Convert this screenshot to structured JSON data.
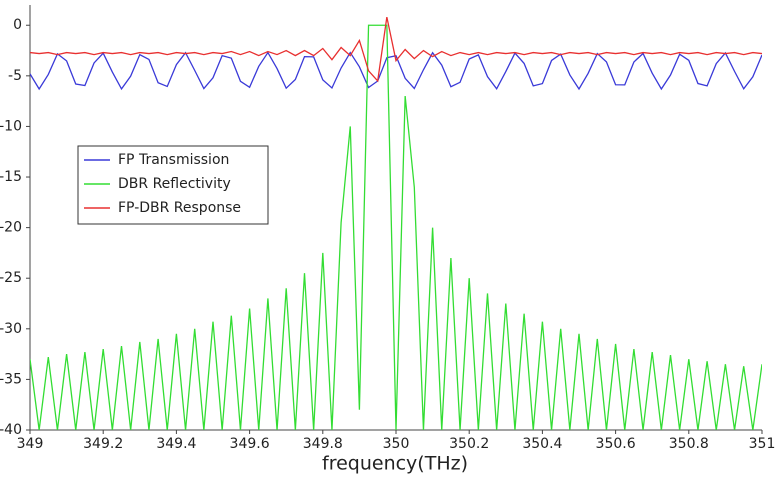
{
  "chart_data": {
    "type": "line",
    "x_label": "frequency(THz)",
    "xlim": [
      349,
      351
    ],
    "xticks": [
      349,
      349.2,
      349.4,
      349.6,
      349.8,
      350,
      350.2,
      350.4,
      350.6,
      350.8,
      351
    ],
    "ylim": [
      -40,
      2
    ],
    "yticks": [
      -40,
      -35,
      -30,
      -25,
      -20,
      -15,
      -10,
      -5,
      0
    ],
    "legend": "upper-left",
    "x": [
      349,
      349.025,
      349.05,
      349.075,
      349.1,
      349.125,
      349.15,
      349.175,
      349.2,
      349.225,
      349.25,
      349.275,
      349.3,
      349.325,
      349.35,
      349.375,
      349.4,
      349.425,
      349.45,
      349.475,
      349.5,
      349.525,
      349.55,
      349.575,
      349.6,
      349.625,
      349.65,
      349.675,
      349.7,
      349.725,
      349.75,
      349.775,
      349.8,
      349.825,
      349.85,
      349.875,
      349.9,
      349.925,
      349.95,
      349.975,
      350,
      350.025,
      350.05,
      350.075,
      350.1,
      350.125,
      350.15,
      350.175,
      350.2,
      350.225,
      350.25,
      350.275,
      350.3,
      350.325,
      350.35,
      350.375,
      350.4,
      350.425,
      350.45,
      350.475,
      350.5,
      350.525,
      350.55,
      350.575,
      350.6,
      350.625,
      350.65,
      350.675,
      350.7,
      350.725,
      350.75,
      350.775,
      350.8,
      350.825,
      350.85,
      350.875,
      350.9,
      350.925,
      350.95,
      350.975,
      351
    ],
    "series": [
      {
        "name": "FP Transmission",
        "color": "#3a3ad8",
        "values": [
          -4.8,
          -6.3,
          -4.86,
          -2.83,
          -3.52,
          -5.81,
          -5.96,
          -3.73,
          -2.76,
          -4.63,
          -6.29,
          -5.03,
          -2.91,
          -3.38,
          -5.68,
          -6.05,
          -3.89,
          -2.72,
          -4.46,
          -6.26,
          -5.19,
          -3.0,
          -3.25,
          -5.54,
          -6.13,
          -4.06,
          -2.7,
          -4.28,
          -6.22,
          -5.36,
          -3.1,
          -3.13,
          -5.4,
          -6.2,
          -4.23,
          -2.7,
          -4.11,
          -6.15,
          -5.51,
          -3.21,
          -3.02,
          -5.24,
          -6.25,
          -4.4,
          -2.72,
          -3.94,
          -6.08,
          -5.64,
          -3.34,
          -2.93,
          -5.08,
          -6.28,
          -4.58,
          -2.75,
          -3.77,
          -5.99,
          -5.77,
          -3.48,
          -2.85,
          -4.91,
          -6.3,
          -4.75,
          -2.8,
          -3.62,
          -5.88,
          -5.89,
          -3.63,
          -2.79,
          -4.74,
          -6.3,
          -4.92,
          -2.86,
          -3.47,
          -5.76,
          -5.99,
          -3.79,
          -2.74,
          -4.56,
          -6.28,
          -5.09,
          -2.94
        ]
      },
      {
        "name": "DBR Reflectivity",
        "color": "#33dd33",
        "values": [
          -33,
          -40,
          -32.8,
          -40,
          -32.5,
          -40,
          -32.3,
          -40,
          -32,
          -40,
          -31.7,
          -40,
          -31.3,
          -40,
          -31,
          -40,
          -30.5,
          -40,
          -30,
          -40,
          -29.3,
          -40,
          -28.7,
          -40,
          -28,
          -40,
          -27,
          -40,
          -26,
          -40,
          -24.5,
          -40,
          -22.5,
          -40,
          -19.5,
          -10,
          -38,
          0,
          0,
          0,
          -40,
          -7,
          -16,
          -40,
          -20,
          -40,
          -23,
          -40,
          -25,
          -40,
          -26.5,
          -40,
          -27.5,
          -40,
          -28.5,
          -40,
          -29.3,
          -40,
          -30,
          -40,
          -30.5,
          -40,
          -31,
          -40,
          -31.5,
          -40,
          -32,
          -40,
          -32.3,
          -40,
          -32.6,
          -40,
          -33,
          -40,
          -33.2,
          -40,
          -33.5,
          -40,
          -33.7,
          -40,
          -33.5
        ]
      },
      {
        "name": "FP-DBR Response",
        "color": "#e83030",
        "values": [
          -2.7,
          -2.8,
          -2.7,
          -2.9,
          -2.7,
          -2.8,
          -2.7,
          -2.9,
          -2.7,
          -2.8,
          -2.7,
          -2.9,
          -2.7,
          -2.8,
          -2.7,
          -2.9,
          -2.7,
          -2.8,
          -2.7,
          -2.9,
          -2.7,
          -2.8,
          -2.6,
          -2.9,
          -2.6,
          -3.0,
          -2.6,
          -2.9,
          -2.5,
          -3.0,
          -2.5,
          -3.0,
          -2.3,
          -3.4,
          -2.2,
          -3.0,
          -1.5,
          -4.5,
          -5.5,
          0.8,
          -3.5,
          -2.4,
          -3.3,
          -2.5,
          -3.1,
          -2.6,
          -3.0,
          -2.7,
          -2.9,
          -2.7,
          -2.9,
          -2.7,
          -2.8,
          -2.7,
          -2.9,
          -2.7,
          -2.8,
          -2.7,
          -2.9,
          -2.7,
          -2.8,
          -2.7,
          -2.9,
          -2.7,
          -2.8,
          -2.7,
          -2.9,
          -2.7,
          -2.8,
          -2.7,
          -2.9,
          -2.7,
          -2.8,
          -2.7,
          -2.9,
          -2.7,
          -2.8,
          -2.7,
          -2.9,
          -2.7,
          -2.8
        ]
      }
    ]
  }
}
